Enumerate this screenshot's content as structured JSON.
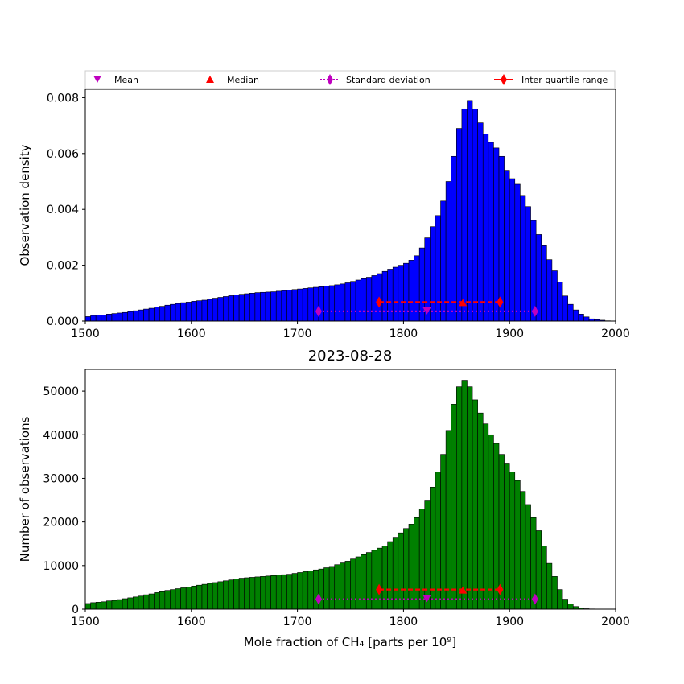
{
  "chart_data": [
    {
      "type": "bar",
      "panel": "top",
      "title": "",
      "xlabel": "",
      "ylabel": "Observation density",
      "xlim": [
        1500,
        2000
      ],
      "ylim": [
        0,
        0.0083
      ],
      "xticks": [
        "1500",
        "1600",
        "1700",
        "1800",
        "1900",
        "2000"
      ],
      "yticks": [
        "0.000",
        "0.002",
        "0.004",
        "0.006",
        "0.008"
      ],
      "ytick_values": [
        0,
        0.002,
        0.004,
        0.006,
        0.008
      ],
      "grid": false,
      "bar_color": "#0000ff",
      "bin_start": 1500,
      "bin_width": 5,
      "values": [
        0.00016,
        0.0002,
        0.00021,
        0.00022,
        0.00025,
        0.00027,
        0.00029,
        0.00031,
        0.00034,
        0.00037,
        0.0004,
        0.00043,
        0.00046,
        0.0005,
        0.00053,
        0.00057,
        0.0006,
        0.00063,
        0.00066,
        0.00068,
        0.00071,
        0.00073,
        0.00075,
        0.00078,
        0.00082,
        0.00085,
        0.00088,
        0.00091,
        0.00094,
        0.00096,
        0.00098,
        0.001,
        0.00102,
        0.00103,
        0.00104,
        0.00105,
        0.00107,
        0.00109,
        0.00111,
        0.00113,
        0.00115,
        0.00117,
        0.00119,
        0.00121,
        0.00123,
        0.00125,
        0.00127,
        0.0013,
        0.00133,
        0.00137,
        0.00142,
        0.00147,
        0.00152,
        0.00157,
        0.00163,
        0.0017,
        0.00178,
        0.00186,
        0.00193,
        0.002,
        0.00207,
        0.00218,
        0.00234,
        0.00262,
        0.00298,
        0.00338,
        0.00378,
        0.0043,
        0.005,
        0.0059,
        0.0069,
        0.0076,
        0.0079,
        0.0076,
        0.0071,
        0.0067,
        0.0064,
        0.0062,
        0.0059,
        0.0054,
        0.0051,
        0.0049,
        0.0045,
        0.0041,
        0.0036,
        0.0031,
        0.0027,
        0.0022,
        0.0018,
        0.0014,
        0.0009,
        0.0006,
        0.0004,
        0.00025,
        0.00015,
        8e-05,
        5e-05,
        3e-05,
        1e-05,
        0
      ],
      "statistics": {
        "mean": 1822,
        "median": 1856,
        "std_low": 1720,
        "std_high": 1924,
        "q1": 1777,
        "q3": 1891,
        "marker_y": 0.00035,
        "iqr_y": 0.00068,
        "median_y": 0.00068
      }
    },
    {
      "type": "bar",
      "panel": "bottom",
      "title": "2023-08-28",
      "xlabel": "Mole fraction of CH₄ [parts per 10⁹]",
      "ylabel": "Number of observations",
      "xlim": [
        1500,
        2000
      ],
      "ylim": [
        0,
        55000
      ],
      "xticks": [
        "1500",
        "1600",
        "1700",
        "1800",
        "1900",
        "2000"
      ],
      "yticks": [
        "0",
        "10000",
        "20000",
        "30000",
        "40000",
        "50000"
      ],
      "ytick_values": [
        0,
        10000,
        20000,
        30000,
        40000,
        50000
      ],
      "grid": false,
      "bar_color": "#008000",
      "bin_start": 1500,
      "bin_width": 5,
      "values": [
        1300,
        1500,
        1600,
        1700,
        1900,
        2000,
        2200,
        2400,
        2600,
        2800,
        3000,
        3300,
        3500,
        3800,
        4000,
        4300,
        4500,
        4700,
        4900,
        5100,
        5300,
        5500,
        5700,
        5900,
        6100,
        6300,
        6500,
        6700,
        6900,
        7100,
        7200,
        7300,
        7400,
        7500,
        7600,
        7700,
        7800,
        7900,
        8000,
        8200,
        8400,
        8600,
        8800,
        9000,
        9200,
        9500,
        9800,
        10200,
        10600,
        11000,
        11500,
        12000,
        12500,
        13000,
        13500,
        14000,
        14500,
        15500,
        16500,
        17500,
        18500,
        19500,
        21000,
        23000,
        25000,
        28000,
        31500,
        35500,
        41000,
        47000,
        51000,
        52500,
        51000,
        48000,
        45000,
        42500,
        40000,
        38000,
        35500,
        33500,
        31500,
        29500,
        27000,
        24000,
        21000,
        18000,
        14500,
        10500,
        7500,
        4500,
        2300,
        1200,
        600,
        250,
        100,
        50,
        20,
        0,
        0,
        0
      ],
      "statistics": {
        "mean": 1822,
        "median": 1856,
        "std_low": 1720,
        "std_high": 1924,
        "q1": 1777,
        "q3": 1891,
        "marker_y": 2300,
        "iqr_y": 4500,
        "median_y": 4500
      }
    }
  ],
  "legend": {
    "placement": "top",
    "items": [
      {
        "label": "Mean",
        "marker": "triangle-down",
        "color": "#bf00bf"
      },
      {
        "label": "Median",
        "marker": "triangle-up",
        "color": "#ff0000"
      },
      {
        "label": "Standard deviation",
        "marker": "diamond",
        "color": "#bf00bf",
        "line": "dotted"
      },
      {
        "label": "Inter quartile range",
        "marker": "diamond",
        "color": "#ff0000",
        "line": "solid"
      }
    ]
  }
}
